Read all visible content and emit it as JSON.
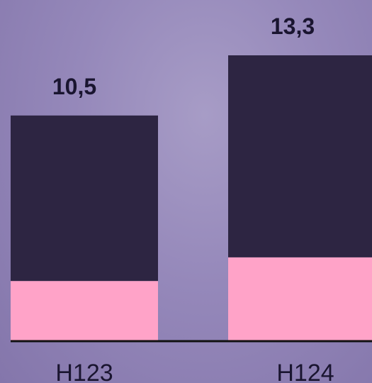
{
  "chart_data": {
    "type": "bar",
    "stacked": true,
    "categories": [
      "H123",
      "H124"
    ],
    "totals": [
      "10,5",
      "13,3"
    ],
    "series": [
      {
        "values": [
          2.8,
          3.9
        ],
        "color": "#ffa3c8"
      },
      {
        "values": [
          7.7,
          9.4
        ],
        "color": "#2d2542"
      }
    ],
    "total_values": [
      10.5,
      13.3
    ],
    "ylim": [
      0,
      13.3
    ],
    "axis_color": "#111111",
    "label_color": "#1a1530",
    "grid": false,
    "legend": "none"
  }
}
